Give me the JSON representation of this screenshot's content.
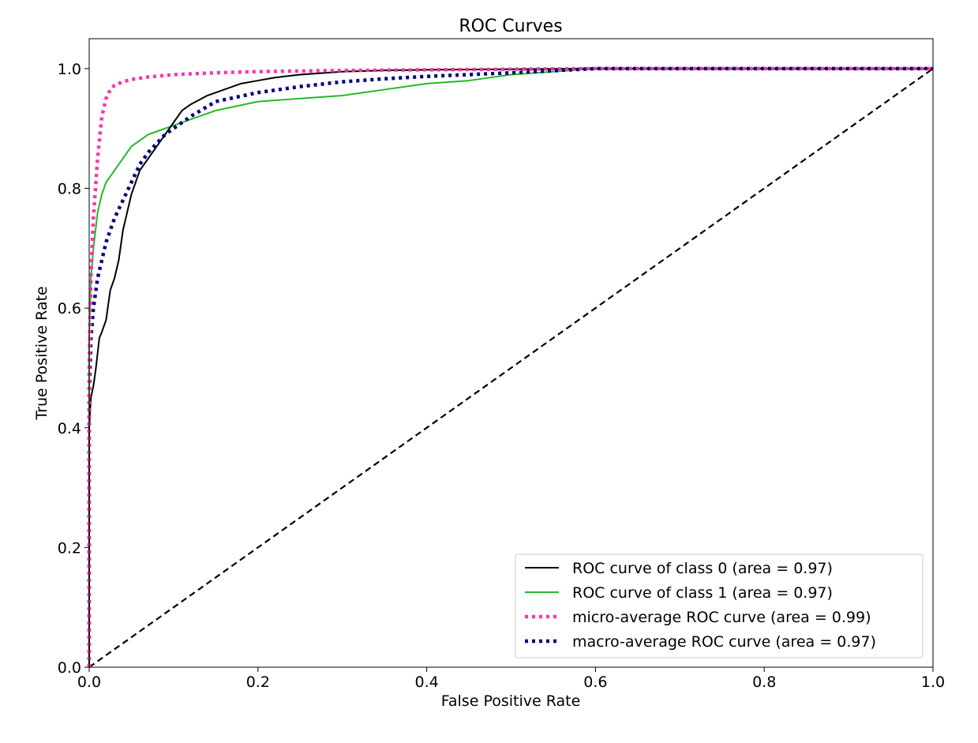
{
  "chart_data": {
    "type": "line",
    "title": "ROC Curves",
    "xlabel": "False Positive Rate",
    "ylabel": "True Positive Rate",
    "xlim": [
      0.0,
      1.0
    ],
    "ylim": [
      0.0,
      1.05
    ],
    "x_ticks": [
      "0.0",
      "0.2",
      "0.4",
      "0.6",
      "0.8",
      "1.0"
    ],
    "y_ticks": [
      "0.0",
      "0.2",
      "0.4",
      "0.6",
      "0.8",
      "1.0"
    ],
    "grid": false,
    "legend_position": "bottom-right",
    "series": [
      {
        "name": "ROC curve of class 0 (area = 0.97)",
        "color": "#000000",
        "style": "solid",
        "x": [
          0.0,
          0.0,
          0.002,
          0.005,
          0.008,
          0.012,
          0.015,
          0.02,
          0.025,
          0.03,
          0.035,
          0.04,
          0.045,
          0.05,
          0.055,
          0.06,
          0.07,
          0.08,
          0.09,
          0.1,
          0.11,
          0.12,
          0.14,
          0.16,
          0.18,
          0.2,
          0.22,
          0.25,
          0.3,
          0.35,
          0.4,
          0.5,
          0.6,
          0.7,
          0.8,
          0.9,
          1.0
        ],
        "y": [
          0.0,
          0.4,
          0.45,
          0.47,
          0.5,
          0.55,
          0.56,
          0.58,
          0.63,
          0.65,
          0.68,
          0.73,
          0.76,
          0.79,
          0.81,
          0.83,
          0.85,
          0.87,
          0.89,
          0.91,
          0.93,
          0.94,
          0.955,
          0.965,
          0.975,
          0.98,
          0.985,
          0.99,
          0.995,
          0.997,
          0.998,
          0.999,
          1.0,
          1.0,
          1.0,
          1.0,
          1.0
        ]
      },
      {
        "name": "ROC curve of class 1 (area = 0.97)",
        "color": "#22bb22",
        "style": "solid",
        "x": [
          0.0,
          0.0,
          0.002,
          0.005,
          0.01,
          0.015,
          0.02,
          0.03,
          0.04,
          0.05,
          0.06,
          0.07,
          0.08,
          0.09,
          0.1,
          0.12,
          0.15,
          0.2,
          0.25,
          0.3,
          0.35,
          0.4,
          0.45,
          0.5,
          0.55,
          0.6,
          0.7,
          0.8,
          0.9,
          1.0
        ],
        "y": [
          0.0,
          0.55,
          0.65,
          0.7,
          0.76,
          0.79,
          0.81,
          0.83,
          0.85,
          0.87,
          0.88,
          0.89,
          0.895,
          0.9,
          0.905,
          0.915,
          0.93,
          0.945,
          0.95,
          0.955,
          0.965,
          0.975,
          0.98,
          0.99,
          0.995,
          1.0,
          1.0,
          1.0,
          1.0,
          1.0
        ]
      },
      {
        "name": "micro-average ROC curve (area = 0.99)",
        "color": "#ff33aa",
        "style": "dotted",
        "x": [
          0.0,
          0.0,
          0.002,
          0.005,
          0.01,
          0.015,
          0.02,
          0.025,
          0.03,
          0.04,
          0.05,
          0.07,
          0.1,
          0.15,
          0.2,
          0.3,
          0.4,
          0.5,
          0.6,
          0.7,
          0.8,
          0.9,
          1.0
        ],
        "y": [
          0.0,
          0.5,
          0.65,
          0.75,
          0.85,
          0.92,
          0.95,
          0.965,
          0.972,
          0.978,
          0.982,
          0.986,
          0.99,
          0.993,
          0.995,
          0.997,
          0.998,
          0.999,
          1.0,
          1.0,
          1.0,
          1.0,
          1.0
        ]
      },
      {
        "name": "macro-average ROC curve (area = 0.97)",
        "color": "#000080",
        "style": "dotted",
        "x": [
          0.0,
          0.0,
          0.002,
          0.005,
          0.01,
          0.015,
          0.02,
          0.03,
          0.04,
          0.05,
          0.06,
          0.07,
          0.08,
          0.09,
          0.1,
          0.12,
          0.15,
          0.2,
          0.25,
          0.3,
          0.35,
          0.4,
          0.5,
          0.6,
          0.7,
          0.8,
          0.9,
          1.0
        ],
        "y": [
          0.0,
          0.45,
          0.55,
          0.6,
          0.65,
          0.68,
          0.71,
          0.75,
          0.78,
          0.81,
          0.84,
          0.86,
          0.875,
          0.89,
          0.9,
          0.92,
          0.945,
          0.96,
          0.97,
          0.978,
          0.983,
          0.987,
          0.993,
          1.0,
          1.0,
          1.0,
          1.0,
          1.0
        ]
      },
      {
        "name": "",
        "color": "#000000",
        "style": "dashed",
        "x": [
          0.0,
          1.0
        ],
        "y": [
          0.0,
          1.0
        ]
      }
    ]
  }
}
